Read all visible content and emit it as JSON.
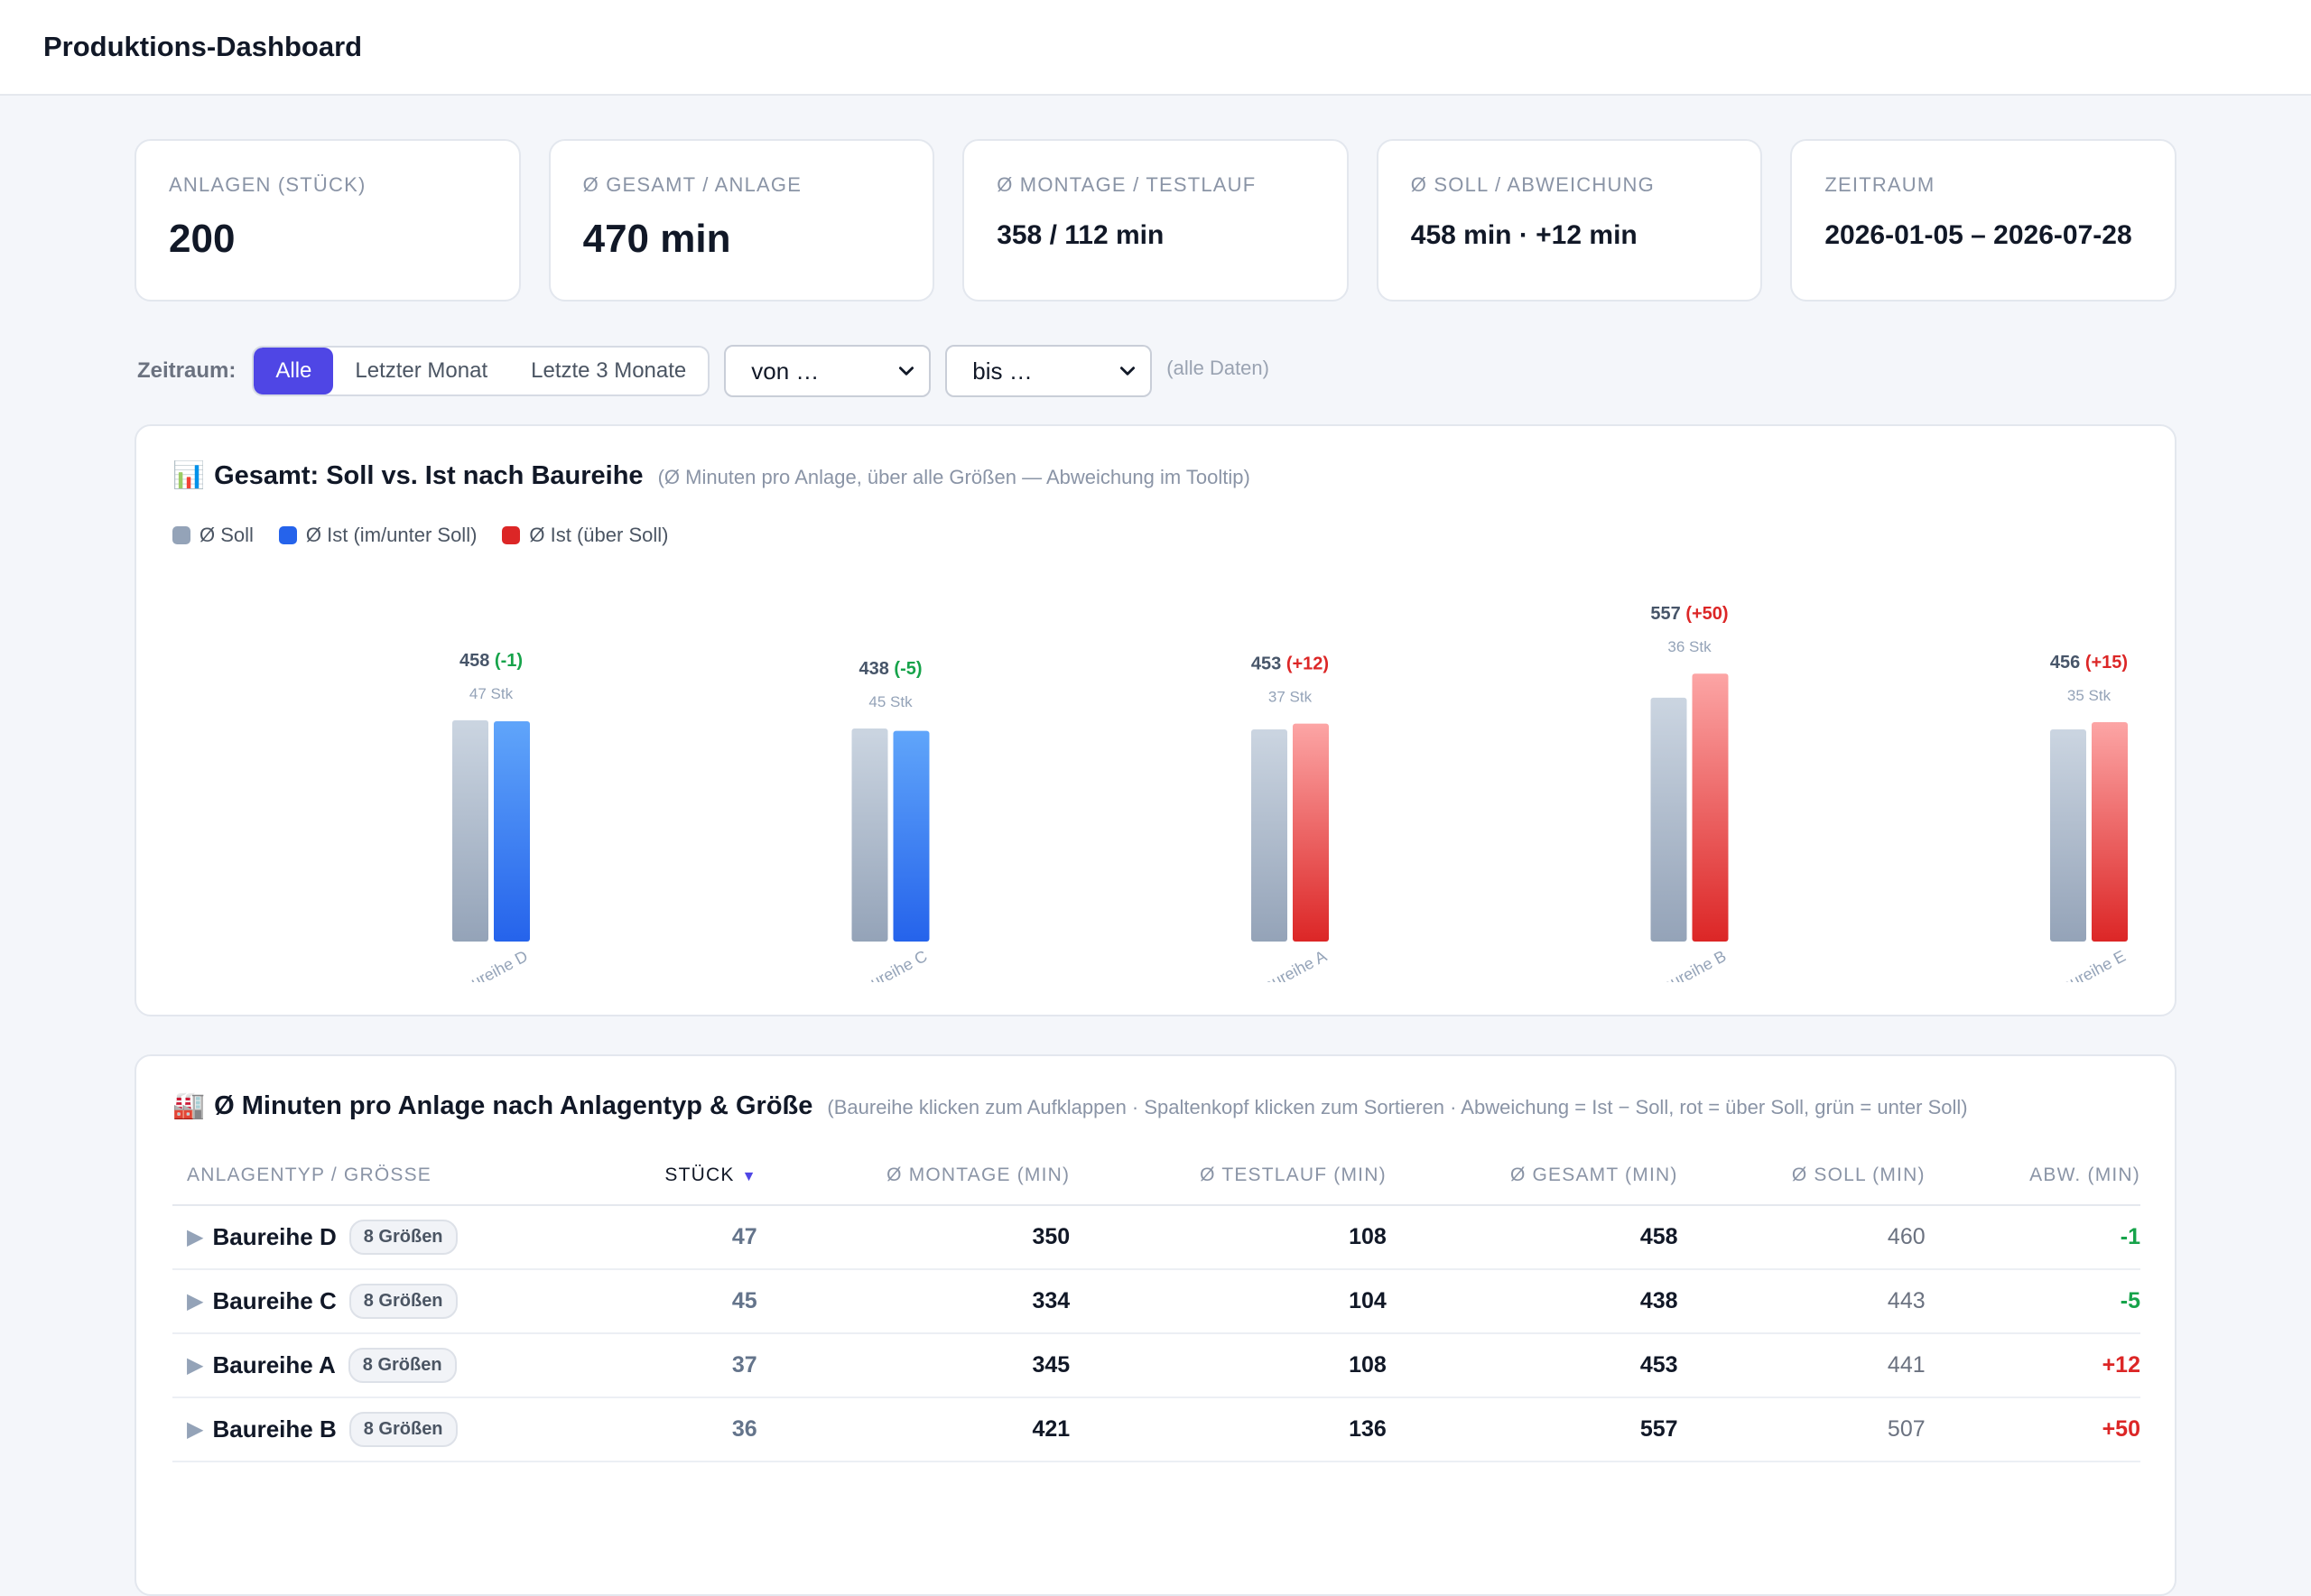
{
  "header": {
    "title": "Produktions-Dashboard"
  },
  "kpis": [
    {
      "label": "Anlagen (Stück)",
      "value": "200",
      "size": "big"
    },
    {
      "label": "Ø Gesamt / Anlage",
      "value": "470 min",
      "size": "big"
    },
    {
      "label": "Ø Montage / Testlauf",
      "value": "358 / 112 min",
      "size": "mid"
    },
    {
      "label": "Ø Soll / Abweichung",
      "value": "458 min · +12 min",
      "size": "mid"
    },
    {
      "label": "Zeitraum",
      "value": "2026-01-05 – 2026-07-28",
      "size": "mid"
    }
  ],
  "filter": {
    "label": "Zeitraum:",
    "options": [
      "Alle",
      "Letzter Monat",
      "Letzte 3 Monate"
    ],
    "active": "Alle",
    "from_value": "von …",
    "to_value": "bis …",
    "note": "(alle Daten)"
  },
  "chart_card": {
    "icon": "📊",
    "title": "Gesamt: Soll vs. Ist nach Baureihe",
    "subtitle": "(Ø Minuten pro Anlage, über alle Größen — Abweichung im Tooltip)",
    "legend": [
      {
        "label": "Ø Soll",
        "color": "#94a3b8"
      },
      {
        "label": "Ø Ist (im/unter Soll)",
        "color": "#2563eb"
      },
      {
        "label": "Ø Ist (über Soll)",
        "color": "#dc2626"
      }
    ]
  },
  "chart_data": {
    "type": "bar",
    "categories": [
      "Baureihe D",
      "Baureihe C",
      "Baureihe A",
      "Baureihe B",
      "Baureihe E"
    ],
    "series": [
      {
        "name": "Ø Soll",
        "values": [
          460,
          443,
          441,
          507,
          441
        ]
      },
      {
        "name": "Ø Ist",
        "values": [
          458,
          438,
          453,
          557,
          456
        ]
      }
    ],
    "value_labels": [
      "458",
      "438",
      "453",
      "557",
      "456"
    ],
    "deviation_labels": [
      "(-1)",
      "(-5)",
      "(+12)",
      "(+50)",
      "(+15)"
    ],
    "count_labels": [
      "47 Stk",
      "45 Stk",
      "37 Stk",
      "36 Stk",
      "35 Stk"
    ],
    "colors": {
      "soll": "#94a3b8",
      "ist_ok": "#2563eb",
      "ist_over": "#dc2626",
      "neg_text": "#16a34a",
      "pos_text": "#dc2626"
    }
  },
  "table_card": {
    "icon": "🏭",
    "title": "Ø Minuten pro Anlage nach Anlagentyp & Größe",
    "subtitle": "(Baureihe klicken zum Aufklappen · Spaltenkopf klicken zum Sortieren · Abweichung = Ist − Soll, rot = über Soll, grün = unter Soll)",
    "columns": [
      "Anlagentyp / Größe",
      "Stück",
      "Ø Montage (min)",
      "Ø Testlauf (min)",
      "Ø Gesamt (min)",
      "Ø Soll (min)",
      "Abw. (min)"
    ],
    "sort_indicator": "▼",
    "rows": [
      {
        "name": "Baureihe D",
        "badge": "8 Größen",
        "stueck": "47",
        "montage": "350",
        "testlauf": "108",
        "gesamt": "458",
        "soll": "460",
        "abw": "-1"
      },
      {
        "name": "Baureihe C",
        "badge": "8 Größen",
        "stueck": "45",
        "montage": "334",
        "testlauf": "104",
        "gesamt": "438",
        "soll": "443",
        "abw": "-5"
      },
      {
        "name": "Baureihe A",
        "badge": "8 Größen",
        "stueck": "37",
        "montage": "345",
        "testlauf": "108",
        "gesamt": "453",
        "soll": "441",
        "abw": "+12"
      },
      {
        "name": "Baureihe B",
        "badge": "8 Größen",
        "stueck": "36",
        "montage": "421",
        "testlauf": "136",
        "gesamt": "557",
        "soll": "507",
        "abw": "+50"
      }
    ]
  }
}
